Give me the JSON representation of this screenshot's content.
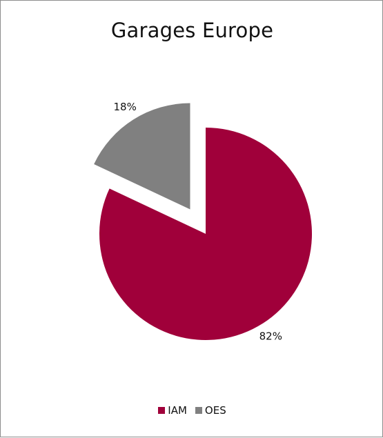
{
  "chart_data": {
    "type": "pie",
    "title": "Garages Europe",
    "series": [
      {
        "name": "IAM",
        "value": 82,
        "label": "82%",
        "color": "#a0003a"
      },
      {
        "name": "OES",
        "value": 18,
        "label": "18%",
        "color": "#808080",
        "exploded": true
      }
    ],
    "legend_position": "bottom"
  }
}
